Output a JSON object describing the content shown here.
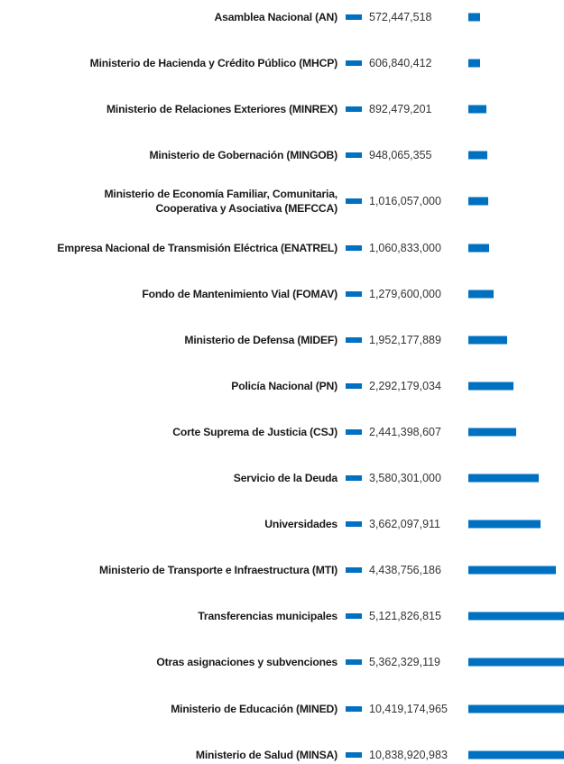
{
  "chart_data": {
    "type": "bar",
    "orientation": "horizontal",
    "color": "#0070c0",
    "categories": [
      "Asamblea Nacional (AN)",
      "Ministerio de Hacienda y Crédito Público (MHCP)",
      "Ministerio de Relaciones Exteriores (MINREX)",
      "Ministerio de Gobernación (MINGOB)",
      "Ministerio de Economía Familiar, Comunitaria,\nCooperativa y Asociativa (MEFCCA)",
      "Empresa Nacional de Transmisión Eléctrica (ENATREL)",
      "Fondo de Mantenimiento Vial (FOMAV)",
      "Ministerio de Defensa (MIDEF)",
      "Policía Nacional (PN)",
      "Corte Suprema de Justicia (CSJ)",
      "Servicio de la Deuda",
      "Universidades",
      "Ministerio de Transporte e Infraestructura (MTI)",
      "Transferencias municipales",
      "Otras asignaciones y subvenciones",
      "Ministerio de Educación (MINED)",
      "Ministerio de Salud (MINSA)"
    ],
    "values": [
      572447518,
      606840412,
      892479201,
      948065355,
      1016057000,
      1060833000,
      1279600000,
      1952177889,
      2292179034,
      2441398607,
      3580301000,
      3662097911,
      4438756186,
      5121826815,
      5362329119,
      10419174965,
      10838920983
    ],
    "value_labels": [
      "572,447,518",
      "606,840,412",
      "892,479,201",
      "948,065,355",
      "1,016,057,000",
      "1,060,833,000",
      "1,279,600,000",
      "1,952,177,889",
      "2,292,179,034",
      "2,441,398,607",
      "3,580,301,000",
      "3,662,097,911",
      "4,438,756,186",
      "5,121,826,815",
      "5,362,329,119",
      "10,419,174,965",
      "10,838,920,983"
    ]
  }
}
